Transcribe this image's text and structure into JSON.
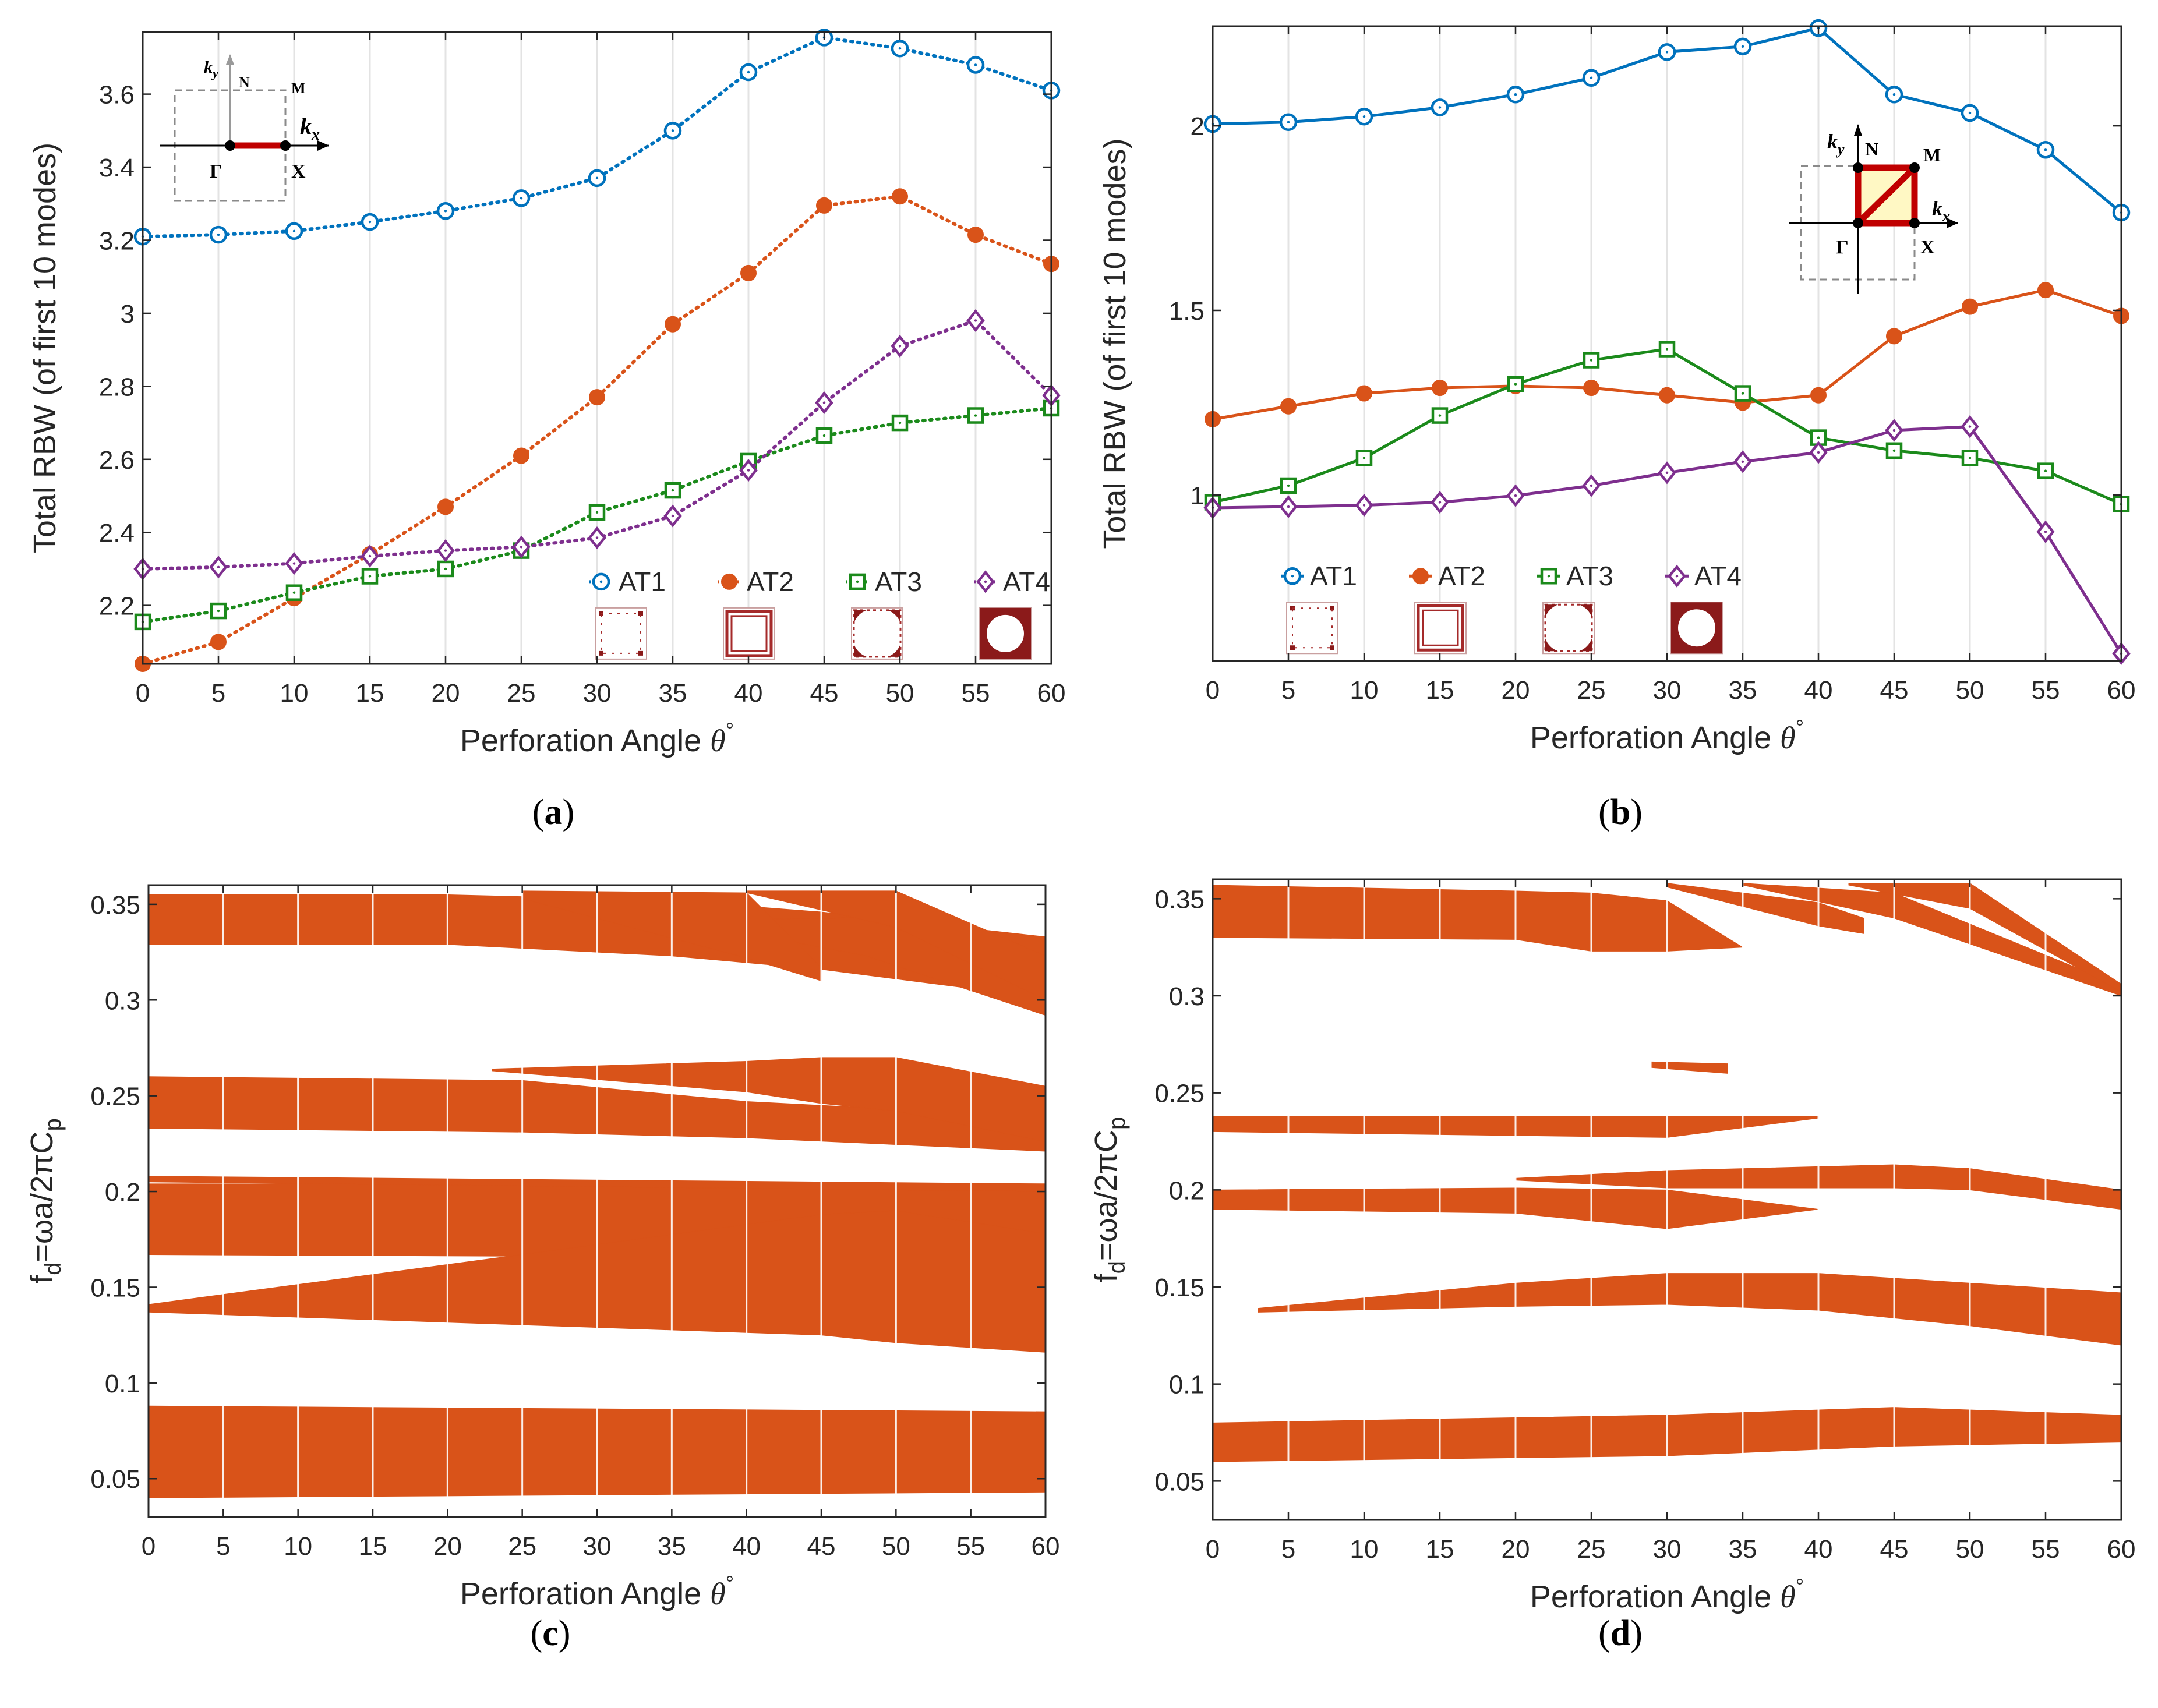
{
  "colors": {
    "AT1": "#0072BD",
    "AT2": "#D95319",
    "AT3": "#1B8A1B",
    "AT4": "#7E2F8E",
    "band": "#D95319",
    "grid": "#e6e6e6",
    "inset_path": "#C00000",
    "inset_fill": "#FFF8C4"
  },
  "chart_data": [
    {
      "id": "a",
      "panel_label": "(a)",
      "type": "line",
      "style": "dotted",
      "x": [
        0,
        5,
        10,
        15,
        20,
        25,
        30,
        35,
        40,
        45,
        50,
        55,
        60
      ],
      "xlabel_text": "Perforation Angle ",
      "xlabel_symbol": "θ",
      "xlabel_sup": "°",
      "ylabel": "Total RBW (of first 10 modes)",
      "xlim": [
        0,
        60
      ],
      "ylim": [
        2.04,
        3.77
      ],
      "xticks": [
        "0",
        "5",
        "10",
        "15",
        "20",
        "25",
        "30",
        "35",
        "40",
        "45",
        "50",
        "55",
        "60"
      ],
      "yticks": [
        {
          "v": 2.2,
          "t": "2.2"
        },
        {
          "v": 2.4,
          "t": "2.4"
        },
        {
          "v": 2.6,
          "t": "2.6"
        },
        {
          "v": 2.8,
          "t": "2.8"
        },
        {
          "v": 3.0,
          "t": "3"
        },
        {
          "v": 3.2,
          "t": "3.2"
        },
        {
          "v": 3.4,
          "t": "3.4"
        },
        {
          "v": 3.6,
          "t": "3.6"
        }
      ],
      "series": [
        {
          "name": "AT1",
          "marker": "circle-open",
          "values": [
            3.21,
            3.215,
            3.225,
            3.25,
            3.28,
            3.315,
            3.37,
            3.5,
            3.66,
            3.755,
            3.725,
            3.68,
            3.61
          ]
        },
        {
          "name": "AT2",
          "marker": "circle-filled",
          "values": [
            2.04,
            2.1,
            2.22,
            2.34,
            2.47,
            2.61,
            2.77,
            2.97,
            3.11,
            3.295,
            3.32,
            3.215,
            3.135
          ]
        },
        {
          "name": "AT3",
          "marker": "square-open",
          "values": [
            2.155,
            2.185,
            2.235,
            2.28,
            2.3,
            2.35,
            2.455,
            2.515,
            2.595,
            2.665,
            2.7,
            2.72,
            2.74
          ]
        },
        {
          "name": "AT4",
          "marker": "diamond-open",
          "values": [
            2.3,
            2.305,
            2.315,
            2.335,
            2.35,
            2.36,
            2.385,
            2.445,
            2.57,
            2.755,
            2.91,
            2.98,
            2.775
          ]
        }
      ],
      "inset": {
        "kx": "k",
        "kx_sub": "x",
        "ky": "k",
        "ky_sub": "y",
        "N": "N",
        "M": "M",
        "Gamma": "Γ",
        "X": "X"
      }
    },
    {
      "id": "b",
      "panel_label": "(b)",
      "type": "line",
      "style": "solid",
      "x": [
        0,
        5,
        10,
        15,
        20,
        25,
        30,
        35,
        40,
        45,
        50,
        55,
        60
      ],
      "xlabel_text": "Perforation Angle ",
      "xlabel_symbol": "θ",
      "xlabel_sup": "°",
      "ylabel": "Total RBW (of first 10 modes)",
      "xlim": [
        0,
        60
      ],
      "ylim": [
        0.55,
        2.27
      ],
      "xticks": [
        "0",
        "5",
        "10",
        "15",
        "20",
        "25",
        "30",
        "35",
        "40",
        "45",
        "50",
        "55",
        "60"
      ],
      "yticks": [
        {
          "v": 1.0,
          "t": "1"
        },
        {
          "v": 1.5,
          "t": "1.5"
        },
        {
          "v": 2.0,
          "t": "2"
        }
      ],
      "series": [
        {
          "name": "AT1",
          "marker": "circle-open",
          "values": [
            2.005,
            2.01,
            2.025,
            2.05,
            2.085,
            2.13,
            2.2,
            2.215,
            2.265,
            2.085,
            2.035,
            1.935,
            1.765
          ]
        },
        {
          "name": "AT2",
          "marker": "circle-filled",
          "values": [
            1.205,
            1.24,
            1.275,
            1.29,
            1.295,
            1.29,
            1.27,
            1.25,
            1.27,
            1.43,
            1.51,
            1.555,
            1.485
          ]
        },
        {
          "name": "AT3",
          "marker": "square-open",
          "values": [
            0.98,
            1.025,
            1.1,
            1.215,
            1.3,
            1.365,
            1.395,
            1.275,
            1.155,
            1.12,
            1.1,
            1.065,
            0.975
          ]
        },
        {
          "name": "AT4",
          "marker": "diamond-open",
          "values": [
            0.965,
            0.968,
            0.972,
            0.98,
            0.998,
            1.025,
            1.06,
            1.09,
            1.115,
            1.175,
            1.185,
            0.9,
            0.57
          ]
        }
      ],
      "inset": {
        "kx": "k",
        "kx_sub": "x",
        "ky": "k",
        "ky_sub": "y",
        "N": "N",
        "M": "M",
        "Gamma": "Γ",
        "X": "X"
      }
    },
    {
      "id": "c",
      "panel_label": "(c)",
      "type": "area",
      "x": [
        0,
        5,
        10,
        15,
        20,
        25,
        30,
        35,
        40,
        45,
        50,
        55,
        60
      ],
      "xlabel_text": "Perforation Angle ",
      "xlabel_symbol": "θ",
      "xlabel_sup": "°",
      "ylabel_main": "f",
      "ylabel_sub1": "d",
      "ylabel_mid": "=ωa/2πC",
      "ylabel_sub2": "p",
      "xlim": [
        0,
        60
      ],
      "ylim": [
        0.03,
        0.36
      ],
      "xticks": [
        "0",
        "5",
        "10",
        "15",
        "20",
        "25",
        "30",
        "35",
        "40",
        "45",
        "50",
        "55",
        "60"
      ],
      "yticks": [
        {
          "v": 0.05,
          "t": "0.05"
        },
        {
          "v": 0.1,
          "t": "0.1"
        },
        {
          "v": 0.15,
          "t": "0.15"
        },
        {
          "v": 0.2,
          "t": "0.2"
        },
        {
          "v": 0.25,
          "t": "0.25"
        },
        {
          "v": 0.3,
          "t": "0.3"
        },
        {
          "v": 0.35,
          "t": "0.35"
        }
      ],
      "bands": [
        {
          "x": [
            0,
            60
          ],
          "lower": [
            0.04,
            0.043
          ],
          "upper": [
            0.088,
            0.085
          ]
        },
        {
          "x": [
            0,
            60
          ],
          "lower": [
            0.167,
            0.165
          ],
          "upper": [
            0.204,
            0.204
          ]
        },
        {
          "x": [
            0,
            45,
            50,
            60
          ],
          "lower": [
            0.137,
            0.125,
            0.121,
            0.116
          ],
          "upper": [
            0.141,
            0.188,
            0.19,
            0.178
          ]
        },
        {
          "x": [
            0,
            60
          ],
          "lower": [
            0.205,
            0.2
          ],
          "upper": [
            0.208,
            0.204
          ]
        },
        {
          "x": [
            0,
            25,
            40,
            60
          ],
          "lower": [
            0.233,
            0.231,
            0.228,
            0.221
          ],
          "upper": [
            0.26,
            0.258,
            0.247,
            0.239
          ]
        },
        {
          "x": [
            23,
            40,
            45,
            50,
            60
          ],
          "lower": [
            0.263,
            0.252,
            0.246,
            0.242,
            0.226
          ],
          "upper": [
            0.264,
            0.268,
            0.27,
            0.27,
            0.255
          ]
        },
        {
          "x": [
            0,
            20,
            35,
            45,
            60
          ],
          "lower": [
            0.329,
            0.329,
            0.323,
            0.316,
            0.301
          ],
          "upper": [
            0.355,
            0.355,
            0.352,
            0.346,
            0.333
          ]
        },
        {
          "x": [
            38,
            48,
            60
          ],
          "lower": [
            0.338,
            0.323,
            0.292
          ],
          "upper": [
            0.342,
            0.343,
            0.31
          ]
        },
        {
          "x": [
            40,
            50,
            60
          ],
          "lower": [
            0.356,
            0.338,
            0.3
          ],
          "upper": [
            0.357,
            0.357,
            0.323
          ]
        },
        {
          "x": [
            25,
            40,
            45
          ],
          "lower": [
            0.353,
            0.322,
            0.31
          ],
          "upper": [
            0.357,
            0.356,
            0.317
          ]
        }
      ]
    },
    {
      "id": "d",
      "panel_label": "(d)",
      "type": "area",
      "x": [
        0,
        5,
        10,
        15,
        20,
        25,
        30,
        35,
        40,
        45,
        50,
        55,
        60
      ],
      "xlabel_text": "Perforation Angle ",
      "xlabel_symbol": "θ",
      "xlabel_sup": "°",
      "ylabel_main": "f",
      "ylabel_sub1": "d",
      "ylabel_mid": "=ωa/2πC",
      "ylabel_sub2": "p",
      "xlim": [
        0,
        60
      ],
      "ylim": [
        0.03,
        0.36
      ],
      "xticks": [
        "0",
        "5",
        "10",
        "15",
        "20",
        "25",
        "30",
        "35",
        "40",
        "45",
        "50",
        "55",
        "60"
      ],
      "yticks": [
        {
          "v": 0.05,
          "t": "0.05"
        },
        {
          "v": 0.1,
          "t": "0.1"
        },
        {
          "v": 0.15,
          "t": "0.15"
        },
        {
          "v": 0.2,
          "t": "0.2"
        },
        {
          "v": 0.25,
          "t": "0.25"
        },
        {
          "v": 0.3,
          "t": "0.3"
        },
        {
          "v": 0.35,
          "t": "0.35"
        }
      ],
      "bands": [
        {
          "x": [
            0,
            30,
            45,
            60
          ],
          "lower": [
            0.06,
            0.063,
            0.068,
            0.07
          ],
          "upper": [
            0.08,
            0.084,
            0.088,
            0.084
          ]
        },
        {
          "x": [
            3,
            20,
            30,
            40,
            50,
            60
          ],
          "lower": [
            0.137,
            0.14,
            0.141,
            0.138,
            0.13,
            0.12
          ],
          "upper": [
            0.139,
            0.152,
            0.157,
            0.157,
            0.152,
            0.147
          ]
        },
        {
          "x": [
            0,
            20,
            30,
            40
          ],
          "lower": [
            0.19,
            0.188,
            0.18,
            0.19
          ],
          "upper": [
            0.2,
            0.201,
            0.2,
            0.19
          ]
        },
        {
          "x": [
            20,
            30,
            45,
            50,
            60
          ],
          "lower": [
            0.205,
            0.201,
            0.201,
            0.2,
            0.19
          ],
          "upper": [
            0.206,
            0.21,
            0.213,
            0.211,
            0.2
          ]
        },
        {
          "x": [
            0,
            30,
            40
          ],
          "lower": [
            0.23,
            0.227,
            0.237
          ],
          "upper": [
            0.238,
            0.238,
            0.238
          ]
        },
        {
          "x": [
            29,
            34
          ],
          "lower": [
            0.263,
            0.26
          ],
          "upper": [
            0.266,
            0.265
          ]
        },
        {
          "x": [
            0,
            20,
            25,
            30,
            35
          ],
          "lower": [
            0.33,
            0.329,
            0.323,
            0.323,
            0.325
          ],
          "upper": [
            0.357,
            0.354,
            0.353,
            0.349,
            0.325
          ]
        },
        {
          "x": [
            30,
            40,
            43
          ],
          "lower": [
            0.356,
            0.336,
            0.332
          ],
          "upper": [
            0.358,
            0.348,
            0.34
          ]
        },
        {
          "x": [
            35,
            45,
            60
          ],
          "lower": [
            0.357,
            0.34,
            0.3
          ],
          "upper": [
            0.358,
            0.353,
            0.305
          ]
        },
        {
          "x": [
            42,
            50,
            60
          ],
          "lower": [
            0.357,
            0.345,
            0.302
          ],
          "upper": [
            0.358,
            0.358,
            0.306
          ]
        }
      ]
    }
  ]
}
